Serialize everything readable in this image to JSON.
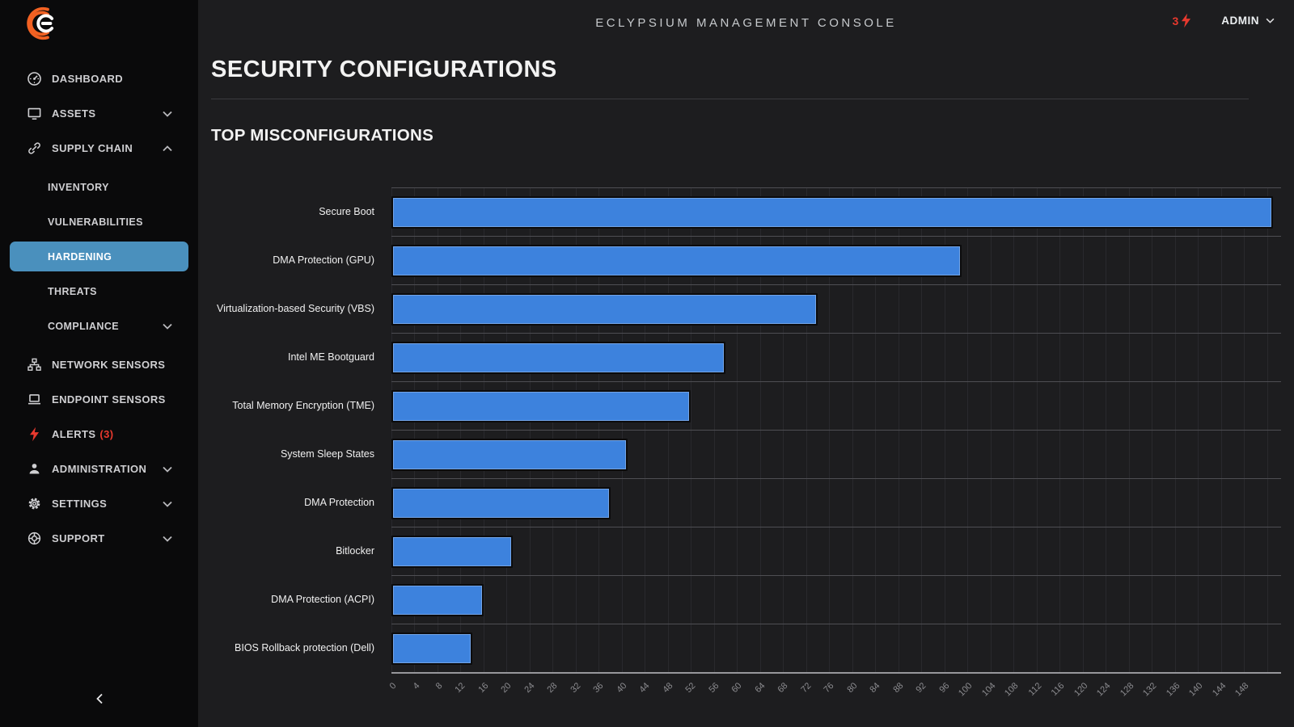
{
  "header": {
    "title": "ECLYPSIUM MANAGEMENT CONSOLE",
    "alert_count": "3",
    "user_label": "ADMIN"
  },
  "page": {
    "title": "SECURITY CONFIGURATIONS",
    "section_title": "TOP MISCONFIGURATIONS"
  },
  "sidebar": {
    "items": [
      {
        "label": "DASHBOARD"
      },
      {
        "label": "ASSETS"
      },
      {
        "label": "SUPPLY CHAIN"
      },
      {
        "label": "INVENTORY"
      },
      {
        "label": "VULNERABILITIES"
      },
      {
        "label": "HARDENING"
      },
      {
        "label": "THREATS"
      },
      {
        "label": "COMPLIANCE"
      },
      {
        "label": "NETWORK SENSORS"
      },
      {
        "label": "ENDPOINT SENSORS"
      },
      {
        "label": "ALERTS",
        "count": "(3)"
      },
      {
        "label": "ADMINISTRATION"
      },
      {
        "label": "SETTINGS"
      },
      {
        "label": "SUPPORT"
      }
    ]
  },
  "chart_data": {
    "type": "bar",
    "orientation": "horizontal",
    "title": "TOP MISCONFIGURATIONS",
    "categories": [
      "Secure Boot",
      "DMA Protection (GPU)",
      "Virtualization-based Security (VBS)",
      "Intel ME Bootguard",
      "Total Memory Encryption (TME)",
      "System Sleep States",
      "DMA Protection",
      "Bitlocker",
      "DMA Protection (ACPI)",
      "BIOS Rollback protection (Dell)"
    ],
    "values": [
      153,
      99,
      74,
      58,
      52,
      41,
      38,
      21,
      16,
      14
    ],
    "xlabel": "",
    "ylabel": "",
    "xlim": [
      0,
      154.4
    ],
    "tick_step": 4,
    "tick_max": 148,
    "grid": true,
    "legend": false,
    "bar_color": "#3d82dd"
  },
  "colors": {
    "bar_blue": "#3d82dd",
    "active_nav_bg": "#4a90bd",
    "alert_red": "#e8392e",
    "logo_orange": "#f26122",
    "background": "#1d1d1f",
    "sidebar_background": "#0a0a0b"
  }
}
